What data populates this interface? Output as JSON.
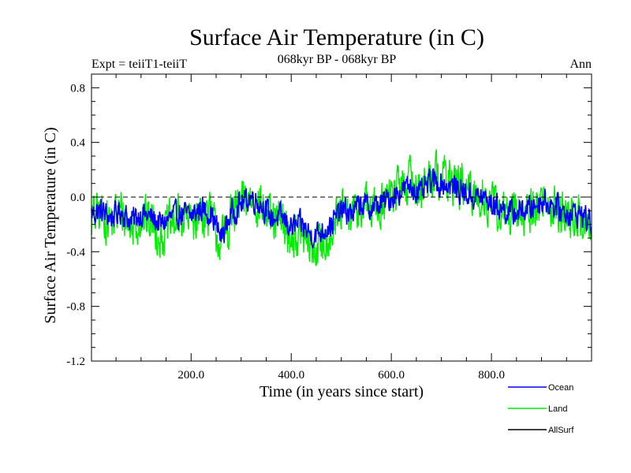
{
  "chart_data": {
    "type": "line",
    "title": "Surface Air Temperature (in C)",
    "subtitle": "068kyr BP - 068kyr BP",
    "header_left": "Expt = teiiT1-teiiT",
    "header_right": "Ann",
    "xlabel": "Time (in years since start)",
    "ylabel": "Surface Air Temperature (in C)",
    "xlim": [
      1,
      1000
    ],
    "ylim": [
      -1.2,
      0.9
    ],
    "xticks": [
      200,
      400,
      600,
      800
    ],
    "xtick_labels": [
      "200.0",
      "400.0",
      "600.0",
      "800.0"
    ],
    "yticks": [
      -1.2,
      -0.8,
      -0.4,
      0.0,
      0.4,
      0.8
    ],
    "ytick_labels": [
      "-1.2",
      "-0.8",
      "-0.4",
      "0.0",
      "0.4",
      "0.8"
    ],
    "zero_line": true,
    "grid": false,
    "legend_position": "bottom-right, below plot",
    "series": [
      {
        "name": "Ocean",
        "color": "#0000ff",
        "x": [
          1,
          20,
          40,
          60,
          80,
          100,
          120,
          140,
          160,
          180,
          200,
          220,
          240,
          260,
          280,
          300,
          320,
          340,
          360,
          380,
          400,
          420,
          440,
          460,
          480,
          500,
          520,
          540,
          560,
          580,
          600,
          620,
          640,
          660,
          680,
          700,
          720,
          740,
          760,
          780,
          800,
          820,
          840,
          860,
          880,
          900,
          920,
          940,
          960,
          980,
          1000
        ],
        "values": [
          -0.12,
          -0.1,
          -0.15,
          -0.1,
          -0.18,
          -0.12,
          -0.15,
          -0.2,
          -0.15,
          -0.12,
          -0.14,
          -0.08,
          -0.12,
          -0.3,
          -0.12,
          -0.05,
          0.0,
          -0.05,
          -0.15,
          -0.15,
          -0.22,
          -0.2,
          -0.28,
          -0.25,
          -0.2,
          -0.1,
          -0.12,
          -0.05,
          -0.08,
          -0.05,
          0.0,
          0.05,
          0.08,
          0.02,
          0.12,
          0.1,
          0.08,
          0.05,
          0.0,
          0.0,
          -0.05,
          -0.08,
          -0.12,
          -0.1,
          -0.08,
          -0.02,
          -0.05,
          -0.1,
          -0.12,
          -0.12,
          -0.2
        ]
      },
      {
        "name": "Land",
        "color": "#00ee00",
        "x": [
          1,
          20,
          40,
          60,
          80,
          100,
          120,
          140,
          160,
          180,
          200,
          220,
          240,
          260,
          280,
          300,
          320,
          340,
          360,
          380,
          400,
          420,
          440,
          460,
          480,
          500,
          520,
          540,
          560,
          580,
          600,
          620,
          640,
          660,
          680,
          700,
          720,
          740,
          760,
          780,
          800,
          820,
          840,
          860,
          880,
          900,
          920,
          940,
          960,
          980,
          1000
        ],
        "values": [
          -0.15,
          -0.12,
          -0.18,
          -0.1,
          -0.22,
          -0.15,
          -0.18,
          -0.28,
          -0.2,
          -0.15,
          -0.18,
          -0.1,
          -0.15,
          -0.35,
          -0.15,
          -0.05,
          0.0,
          -0.05,
          -0.2,
          -0.18,
          -0.3,
          -0.28,
          -0.4,
          -0.35,
          -0.25,
          -0.12,
          -0.15,
          -0.05,
          -0.1,
          -0.05,
          0.02,
          0.08,
          0.12,
          0.05,
          0.18,
          0.15,
          0.12,
          0.08,
          0.0,
          0.02,
          -0.06,
          -0.1,
          -0.15,
          -0.12,
          -0.1,
          -0.02,
          -0.06,
          -0.12,
          -0.15,
          -0.15,
          -0.25
        ]
      },
      {
        "name": "AllSurf",
        "color": "#000000",
        "x": [],
        "values": []
      }
    ]
  }
}
